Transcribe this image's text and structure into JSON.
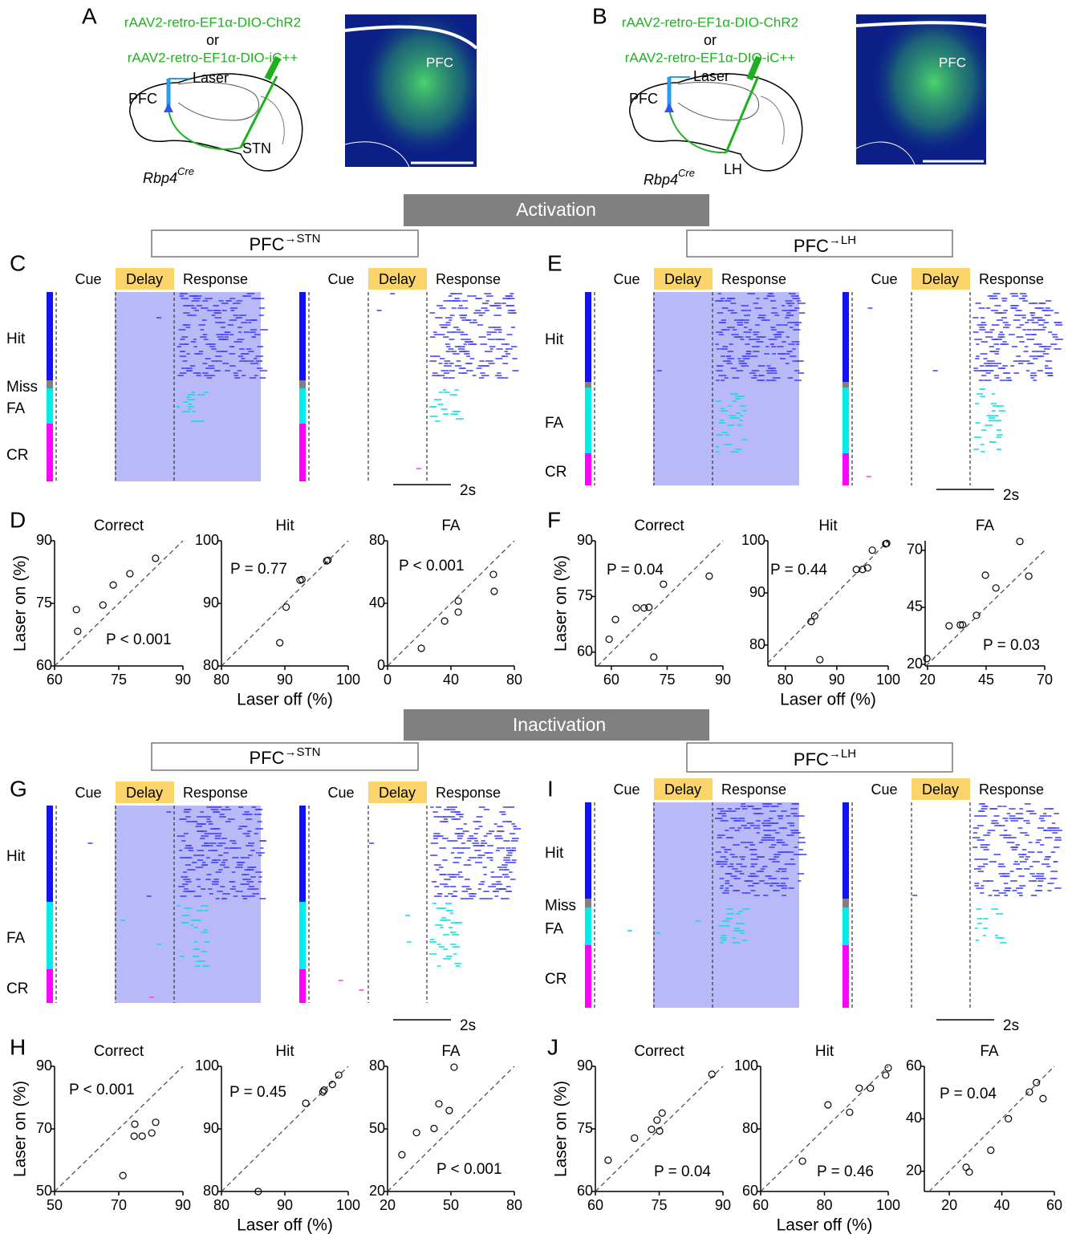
{
  "figure": {
    "panel_letters": [
      "A",
      "B",
      "C",
      "D",
      "E",
      "F",
      "G",
      "H",
      "I",
      "J"
    ],
    "top": [
      {
        "virus_1": "rAAV2-retro-EF1α-DIO-ChR2",
        "or": "or",
        "virus_2": "rAAV2-retro-EF1α-DIO-iC++",
        "laser": "Laser",
        "source": "PFC",
        "target": "STN",
        "mouse": "Rbp4",
        "mouse_sup": "Cre",
        "image_label": "PFC"
      },
      {
        "virus_1": "rAAV2-retro-EF1α-DIO-ChR2",
        "or": "or",
        "virus_2": "rAAV2-retro-EF1α-DIO-iC++",
        "laser": "Laser",
        "source": "PFC",
        "target": "LH",
        "mouse": "Rbp4",
        "mouse_sup": "Cre",
        "image_label": "PFC"
      }
    ],
    "sections": [
      "Activation",
      "Inactivation"
    ],
    "pathways": [
      {
        "base": "PFC",
        "sup": "→STN"
      },
      {
        "base": "PFC",
        "sup": "→LH"
      }
    ],
    "epochs": [
      "Cue",
      "Delay",
      "Response"
    ],
    "scale": "2s",
    "raster_panels": [
      {
        "outcomes": [
          "Hit",
          "Miss",
          "FA",
          "CR"
        ]
      },
      {
        "outcomes": [
          "Hit",
          "FA",
          "CR"
        ]
      },
      {
        "outcomes": [
          "Hit",
          "FA",
          "CR"
        ]
      },
      {
        "outcomes": [
          "Hit",
          "Miss",
          "FA",
          "CR"
        ]
      }
    ]
  },
  "chart_data": [
    {
      "type": "scatter",
      "title": "Correct",
      "ylabel": "Laser on (%)",
      "annotation": "P < 0.001",
      "color": "#000000",
      "x": [
        65.1,
        65.4,
        71.3,
        73.7,
        77.6,
        83.6
      ],
      "values": [
        73.5,
        68.3,
        74.6,
        79.4,
        82.1,
        85.8
      ],
      "xlim": [
        60,
        90
      ],
      "ylim": [
        60,
        90
      ],
      "xticks": [
        60,
        75,
        90
      ],
      "yticks": [
        60,
        75,
        90
      ]
    },
    {
      "type": "scatter",
      "title": "Hit",
      "xlabel": "Laser off (%)",
      "annotation": "P = 0.77",
      "color": "#000000",
      "x": [
        89.2,
        90.2,
        92.4,
        92.7,
        96.6,
        96.8
      ],
      "values": [
        83.7,
        89.4,
        93.7,
        93.8,
        96.8,
        96.9
      ],
      "xlim": [
        80,
        100
      ],
      "ylim": [
        80,
        100
      ],
      "xticks": [
        80,
        90,
        100
      ],
      "yticks": [
        80,
        90,
        100
      ]
    },
    {
      "type": "scatter",
      "title": "FA",
      "annotation": "P < 0.001",
      "color": "#000000",
      "x": [
        21.3,
        36,
        44.6,
        44.6,
        66.8,
        67.3
      ],
      "values": [
        11.3,
        28.7,
        41.5,
        34.4,
        58.5,
        47.7
      ],
      "xlim": [
        0,
        80
      ],
      "ylim": [
        0,
        80
      ],
      "xticks": [
        0,
        40,
        80
      ],
      "yticks": [
        0,
        40,
        80
      ]
    },
    {
      "type": "scatter",
      "title": "Correct",
      "ylabel": "Laser on (%)",
      "annotation": "P = 0.04",
      "color": "#000000",
      "x": [
        59.4,
        61.1,
        66.7,
        68.8,
        70.1,
        71.4,
        74.0,
        86.3
      ],
      "values": [
        63.5,
        68.8,
        71.9,
        71.9,
        72.1,
        58.7,
        78.3,
        80.5
      ],
      "xlim": [
        55.7,
        90
      ],
      "ylim": [
        56.3,
        90
      ],
      "xticks": [
        60,
        75,
        90
      ],
      "yticks": [
        60,
        75,
        90
      ]
    },
    {
      "type": "scatter",
      "title": "Hit",
      "xlabel": "Laser off (%)",
      "annotation": "P = 0.44",
      "color": "#000000",
      "x": [
        85,
        85.7,
        86.7,
        93.8,
        95,
        96,
        96.9,
        99.5,
        99.7
      ],
      "values": [
        84.5,
        85.6,
        77.2,
        94.5,
        94.5,
        94.8,
        98.2,
        99.4,
        99.5
      ],
      "xlim": [
        76.6,
        100
      ],
      "ylim": [
        76,
        100
      ],
      "xticks": [
        80,
        90,
        100
      ],
      "yticks": [
        80,
        90,
        100
      ]
    },
    {
      "type": "scatter",
      "title": "FA",
      "annotation": "P = 0.03",
      "color": "#000000",
      "x": [
        19.7,
        29.2,
        34,
        35,
        40.9,
        44.7,
        49.2,
        59.4,
        63.2
      ],
      "values": [
        22.5,
        36.9,
        37.3,
        37.3,
        41.5,
        59.1,
        53.5,
        73.9,
        58.7
      ],
      "xlim": [
        19,
        70
      ],
      "ylim": [
        19.3,
        74.2
      ],
      "xticks": [
        20,
        45,
        70
      ],
      "yticks": [
        20,
        45,
        70
      ]
    },
    {
      "type": "scatter",
      "title": "Correct",
      "ylabel": "Laser on (%)",
      "annotation": "P < 0.001",
      "color": "#000000",
      "x": [
        71.3,
        75,
        74.8,
        77.3,
        80.3,
        81.5
      ],
      "values": [
        55.1,
        71.5,
        67.7,
        67.7,
        68.7,
        72.1
      ],
      "xlim": [
        50,
        90
      ],
      "ylim": [
        50,
        90
      ],
      "xticks": [
        50,
        70,
        90
      ],
      "yticks": [
        50,
        70,
        90
      ]
    },
    {
      "type": "scatter",
      "title": "Hit",
      "xlabel": "Laser off (%)",
      "annotation": "P = 0.45",
      "color": "#000000",
      "x": [
        85.8,
        93.3,
        96,
        96.2,
        97.5,
        98.5
      ],
      "values": [
        80,
        94.1,
        95.9,
        96.2,
        97.1,
        98.6
      ],
      "xlim": [
        80,
        100
      ],
      "ylim": [
        80,
        100
      ],
      "xticks": [
        80,
        90,
        100
      ],
      "yticks": [
        80,
        90,
        100
      ]
    },
    {
      "type": "scatter",
      "title": "FA",
      "annotation": "P < 0.001",
      "color": "#000000",
      "x": [
        26.8,
        33.7,
        42,
        44.3,
        49.2,
        51.5
      ],
      "values": [
        37.6,
        48.2,
        50.2,
        62,
        58.8,
        79.6
      ],
      "xlim": [
        20,
        80
      ],
      "ylim": [
        20,
        80
      ],
      "xticks": [
        20,
        50,
        80
      ],
      "yticks": [
        20,
        50,
        80
      ]
    },
    {
      "type": "scatter",
      "title": "Correct",
      "ylabel": "Laser on (%)",
      "annotation": "P = 0.04",
      "color": "#000000",
      "x": [
        63,
        69.2,
        73.2,
        74.5,
        75.1,
        75.7,
        87.4
      ],
      "values": [
        67.5,
        72.8,
        74.9,
        77.1,
        74.5,
        78.8,
        88.1
      ],
      "xlim": [
        60,
        90
      ],
      "ylim": [
        60,
        90
      ],
      "xticks": [
        60,
        75,
        90
      ],
      "yticks": [
        60,
        75,
        90
      ]
    },
    {
      "type": "scatter",
      "title": "Hit",
      "xlabel": "Laser off (%)",
      "annotation": "P = 0.46",
      "color": "#000000",
      "x": [
        73.1,
        81.1,
        87.9,
        90.9,
        94.4,
        99.2,
        100
      ],
      "values": [
        69.7,
        87.7,
        85.3,
        93,
        93,
        97.2,
        99.5
      ],
      "xlim": [
        60,
        100
      ],
      "ylim": [
        60,
        100
      ],
      "xticks": [
        60,
        80,
        100
      ],
      "yticks": [
        60,
        80,
        100
      ]
    },
    {
      "type": "scatter",
      "title": "FA",
      "annotation": "P = 0.04",
      "color": "#000000",
      "x": [
        26.4,
        27.6,
        35.8,
        42.5,
        50.5,
        53.2,
        55.7
      ],
      "values": [
        21.5,
        19.7,
        28,
        40,
        50.2,
        53.8,
        47.7
      ],
      "xlim": [
        10.5,
        60
      ],
      "ylim": [
        12.3,
        60
      ],
      "xticks": [
        20,
        40,
        60
      ],
      "yticks": [
        20,
        40,
        60
      ]
    }
  ]
}
